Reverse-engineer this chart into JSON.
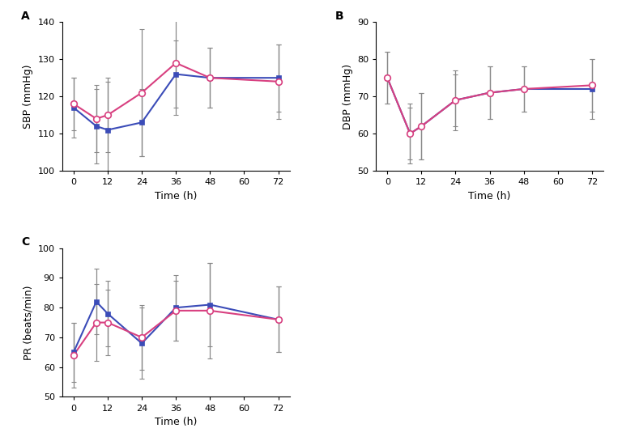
{
  "time_points": [
    0,
    8,
    12,
    24,
    36,
    48,
    60,
    72
  ],
  "sbp": {
    "blue_y": [
      117,
      112,
      111,
      113,
      126,
      125,
      null,
      125
    ],
    "blue_err": [
      8,
      10,
      13,
      9,
      9,
      8,
      null,
      9
    ],
    "pink_y": [
      118,
      114,
      115,
      121,
      129,
      125,
      null,
      124
    ],
    "pink_err": [
      7,
      9,
      10,
      17,
      14,
      8,
      null,
      10
    ],
    "ylim": [
      100,
      140
    ],
    "yticks": [
      100,
      110,
      120,
      130,
      140
    ],
    "ylabel": "SBP (mmHg)"
  },
  "dbp": {
    "blue_y": [
      75,
      60,
      62,
      69,
      71,
      72,
      null,
      72
    ],
    "blue_err": [
      7,
      7,
      9,
      8,
      7,
      6,
      null,
      8
    ],
    "pink_y": [
      75,
      60,
      62,
      69,
      71,
      72,
      null,
      73
    ],
    "pink_err": [
      7,
      8,
      9,
      7,
      7,
      6,
      null,
      7
    ],
    "ylim": [
      50,
      90
    ],
    "yticks": [
      50,
      60,
      70,
      80,
      90
    ],
    "ylabel": "DBP (mmHg)"
  },
  "pr": {
    "blue_y": [
      65,
      82,
      78,
      68,
      80,
      81,
      null,
      76
    ],
    "blue_err": [
      10,
      11,
      11,
      12,
      11,
      14,
      null,
      11
    ],
    "pink_y": [
      64,
      75,
      75,
      70,
      79,
      79,
      null,
      76
    ],
    "pink_err": [
      11,
      13,
      11,
      11,
      10,
      16,
      null,
      11
    ],
    "ylim": [
      50,
      100
    ],
    "yticks": [
      50,
      60,
      70,
      80,
      90,
      100
    ],
    "ylabel": "PR (beats/min)"
  },
  "xticks": [
    0,
    12,
    24,
    36,
    48,
    60,
    72
  ],
  "xlabel": "Time (h)",
  "blue_color": "#3B4CB8",
  "pink_color": "#D84080",
  "error_color": "#888888",
  "marker_size": 5,
  "line_width": 1.5,
  "panel_labels": [
    "A",
    "B",
    "C"
  ],
  "label_fontsize": 10,
  "tick_fontsize": 8,
  "axis_fontsize": 9
}
